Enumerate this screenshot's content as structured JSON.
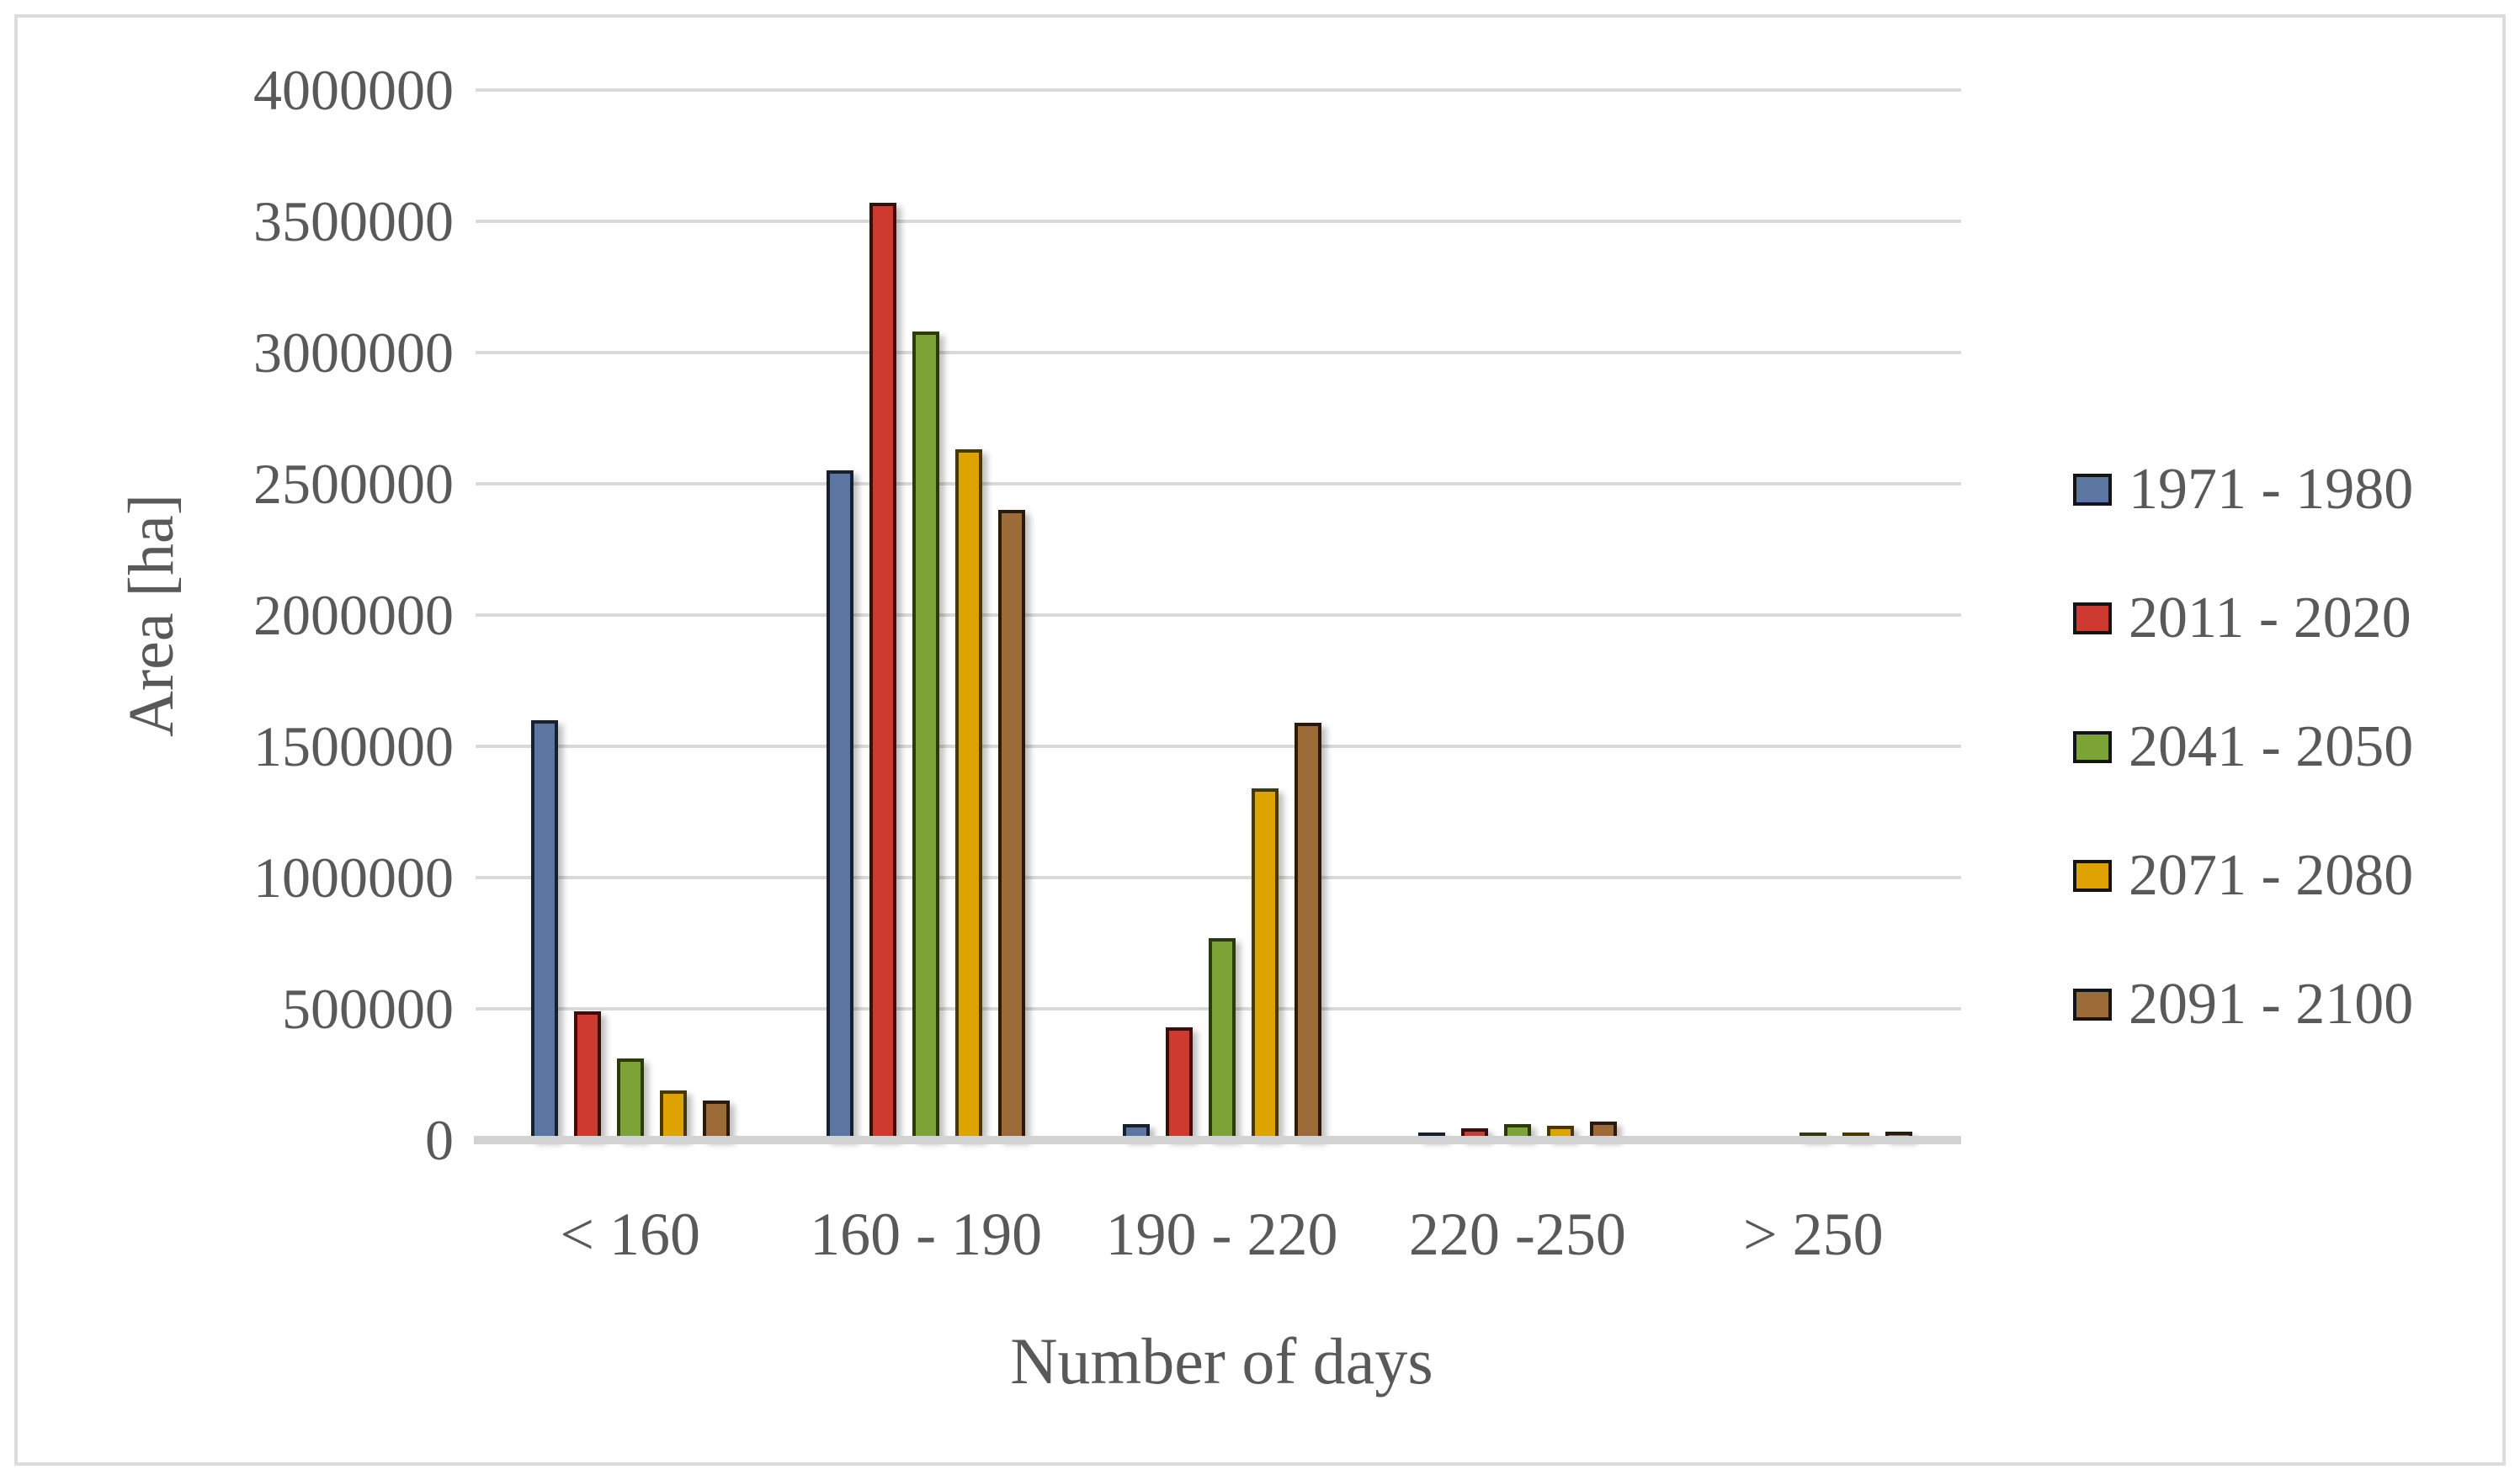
{
  "chart_data": {
    "type": "bar",
    "title": "",
    "xlabel": "Number of days",
    "ylabel": "Area [ha]",
    "ylim": [
      0,
      4000000
    ],
    "ytick_step": 500000,
    "ytick_labels": [
      "0",
      "500000",
      "1000000",
      "1500000",
      "2000000",
      "2500000",
      "3000000",
      "3500000",
      "4000000"
    ],
    "grid": true,
    "legend_position": "right",
    "categories": [
      "< 160",
      "160 - 190",
      "190 - 220",
      "220 -250",
      "> 250"
    ],
    "series": [
      {
        "name": "1971 - 1980",
        "color": "#5B76A1",
        "border_color": "#16202E",
        "values": [
          1600000,
          2550000,
          60000,
          20000,
          0
        ]
      },
      {
        "name": "2011 - 2020",
        "color": "#CF3A30",
        "border_color": "#3E0D0A",
        "values": [
          490000,
          3570000,
          430000,
          45000,
          0
        ]
      },
      {
        "name": "2041 - 2050",
        "color": "#7CA335",
        "border_color": "#2C3A0C",
        "values": [
          310000,
          3080000,
          770000,
          60000,
          10000
        ]
      },
      {
        "name": "2071 - 2080",
        "color": "#DFA300",
        "border_color": "#473700",
        "values": [
          190000,
          2630000,
          1340000,
          55000,
          25000
        ]
      },
      {
        "name": "2091 - 2100",
        "color": "#9C6B38",
        "border_color": "#2B1A09",
        "values": [
          150000,
          2400000,
          1590000,
          70000,
          33000
        ]
      }
    ]
  },
  "styles": {
    "gridline_color": "#D9D9D9",
    "axis_line_color": "#D2D2D2",
    "text_color": "#595959",
    "frame_border_color": "#DCDCDC",
    "background": "#FFFFFF"
  }
}
